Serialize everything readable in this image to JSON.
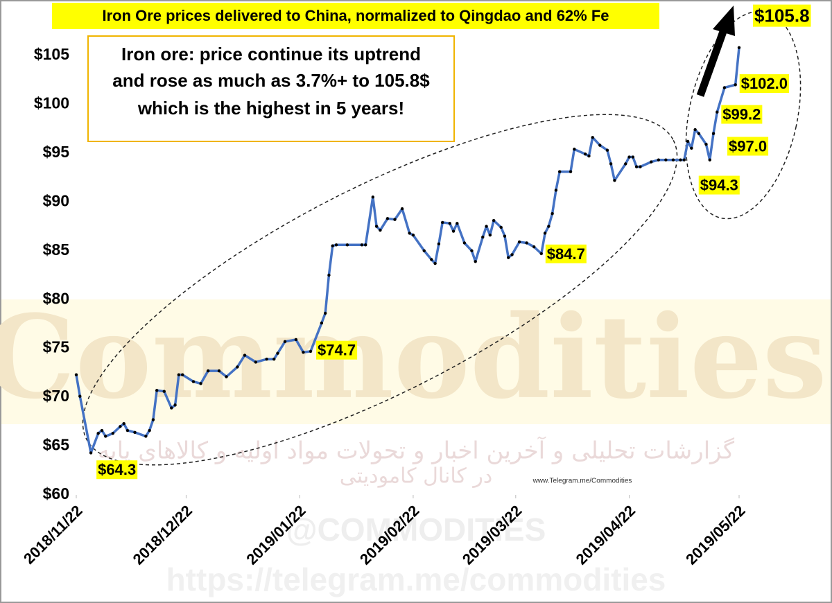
{
  "chart_data": {
    "type": "line",
    "title": "Iron Ore prices delivered to China, normalized to Qingdao and 62% Fe",
    "annotation": [
      "Iron ore: price continue its uptrend",
      "and rose as much as 3.7%+ to 105.8$",
      "which is the highest in 5 years!"
    ],
    "watermarks": [
      "Commodities",
      "گزارشات تحلیلی و آخرین اخبار و تحولات مواد اولیه و کالاهای پایه",
      "در کانال کامودیتی",
      "www.Telegram.me/Commodities",
      "@COMMODITIES",
      "https://telegram.me/commodities"
    ],
    "x": [
      "2018/11/22",
      "2018/11/23",
      "2018/11/26",
      "2018/11/28",
      "2018/11/29",
      "2018/11/30",
      "2018/12/02",
      "2018/12/04",
      "2018/12/05",
      "2018/12/06",
      "2018/12/08",
      "2018/12/11",
      "2018/12/12",
      "2018/12/13",
      "2018/12/14",
      "2018/12/16",
      "2018/12/18",
      "2018/12/19",
      "2018/12/20",
      "2018/12/21",
      "2018/12/24",
      "2018/12/26",
      "2018/12/28",
      "2018/12/31",
      "2019/01/02",
      "2019/01/05",
      "2019/01/07",
      "2019/01/10",
      "2019/01/13",
      "2019/01/15",
      "2019/01/16",
      "2019/01/18",
      "2019/01/21",
      "2019/01/23",
      "2019/01/25",
      "2019/01/28",
      "2019/01/29",
      "2019/01/30",
      "2019/01/31",
      "2019/02/01",
      "2019/02/04",
      "2019/02/08",
      "2019/02/09",
      "2019/02/11",
      "2019/02/12",
      "2019/02/13",
      "2019/02/15",
      "2019/02/17",
      "2019/02/19",
      "2019/02/21",
      "2019/02/22",
      "2019/02/25",
      "2019/02/27",
      "2019/02/28",
      "2019/03/01",
      "2019/03/02",
      "2019/03/04",
      "2019/03/05",
      "2019/03/06",
      "2019/03/08",
      "2019/03/10",
      "2019/03/11",
      "2019/03/13",
      "2019/03/14",
      "2019/03/15",
      "2019/03/16",
      "2019/03/18",
      "2019/03/19",
      "2019/03/20",
      "2019/03/21",
      "2019/03/23",
      "2019/03/25",
      "2019/03/27",
      "2019/03/29",
      "2019/03/30",
      "2019/03/31",
      "2019/04/01",
      "2019/04/02",
      "2019/04/03",
      "2019/04/06",
      "2019/04/07",
      "2019/04/10",
      "2019/04/11",
      "2019/04/12",
      "2019/04/14",
      "2019/04/16",
      "2019/04/17",
      "2019/04/18",
      "2019/04/21",
      "2019/04/22",
      "2019/04/23",
      "2019/04/24",
      "2019/04/25",
      "2019/04/28",
      "2019/04/30",
      "2019/05/02",
      "2019/05/04",
      "2019/05/06",
      "2019/05/07",
      "2019/05/08",
      "2019/05/09",
      "2019/05/10",
      "2019/05/11",
      "2019/05/13",
      "2019/05/14",
      "2019/05/15",
      "2019/05/16",
      "2019/05/18",
      "2019/05/21",
      "2019/05/22"
    ],
    "values": [
      72.3,
      70.1,
      64.3,
      66.3,
      66.6,
      66.0,
      66.3,
      67.0,
      67.3,
      66.6,
      66.4,
      66.0,
      66.6,
      67.7,
      70.7,
      70.6,
      68.9,
      69.2,
      72.3,
      72.3,
      71.6,
      71.4,
      72.7,
      72.7,
      72.1,
      73.1,
      74.3,
      73.6,
      73.9,
      73.9,
      74.5,
      75.7,
      75.9,
      74.6,
      74.7,
      77.6,
      78.6,
      82.5,
      85.5,
      85.6,
      85.6,
      85.6,
      85.6,
      90.5,
      87.5,
      87.1,
      88.3,
      88.2,
      89.3,
      86.8,
      86.6,
      85.0,
      84.1,
      83.7,
      85.7,
      87.9,
      87.8,
      87.0,
      87.8,
      85.8,
      85.0,
      83.9,
      86.4,
      87.5,
      86.6,
      88.1,
      87.4,
      86.5,
      84.3,
      84.6,
      85.9,
      85.8,
      85.4,
      84.7,
      86.8,
      87.5,
      88.8,
      91.2,
      93.1,
      93.1,
      95.4,
      94.9,
      94.7,
      96.6,
      95.8,
      95.3,
      93.9,
      92.2,
      93.9,
      94.6,
      94.6,
      93.6,
      93.6,
      94.1,
      94.3,
      94.3,
      94.3,
      94.3,
      94.3,
      96.2,
      95.5,
      97.4,
      97.0,
      95.9,
      94.3,
      97.0,
      99.2,
      101.7,
      102.0,
      105.8
    ],
    "value_labels": [
      null,
      null,
      "$64.3",
      null,
      null,
      null,
      null,
      null,
      null,
      null,
      null,
      null,
      null,
      null,
      null,
      null,
      null,
      null,
      null,
      null,
      null,
      null,
      null,
      null,
      null,
      null,
      null,
      null,
      null,
      null,
      null,
      null,
      null,
      null,
      "$74.7",
      null,
      null,
      null,
      null,
      null,
      null,
      null,
      null,
      null,
      null,
      null,
      null,
      null,
      null,
      null,
      null,
      null,
      null,
      null,
      null,
      null,
      null,
      null,
      null,
      null,
      null,
      null,
      null,
      null,
      null,
      null,
      null,
      null,
      null,
      null,
      null,
      null,
      null,
      "$84.7",
      null,
      null,
      null,
      null,
      null,
      null,
      null,
      null,
      null,
      null,
      null,
      null,
      null,
      null,
      null,
      null,
      null,
      null,
      null,
      null,
      null,
      null,
      null,
      null,
      null,
      null,
      null,
      null,
      null,
      null,
      "$94.3",
      "$97.0",
      "$99.2",
      null,
      "$102.0",
      "$105.8"
    ],
    "color": "#4472c4",
    "marker_color": "#000000",
    "label_color": "#ffff00",
    "xlim": [
      "2018/11/22",
      "2019/05/22"
    ],
    "xticks": [
      "2018/11/22",
      "2018/12/22",
      "2019/01/22",
      "2019/02/22",
      "2019/03/22",
      "2019/04/22",
      "2019/05/22"
    ],
    "ylim": [
      60,
      105
    ],
    "yticks": [
      {
        "value": 60,
        "label": "$60"
      },
      {
        "value": 65,
        "label": "$65"
      },
      {
        "value": 70,
        "label": "$70"
      },
      {
        "value": 75,
        "label": "$75"
      },
      {
        "value": 80,
        "label": "$80"
      },
      {
        "value": 85,
        "label": "$85"
      },
      {
        "value": 90,
        "label": "$90"
      },
      {
        "value": 95,
        "label": "$95"
      },
      {
        "value": 100,
        "label": "$100"
      },
      {
        "value": 105,
        "label": "$105"
      }
    ],
    "grid": false
  }
}
